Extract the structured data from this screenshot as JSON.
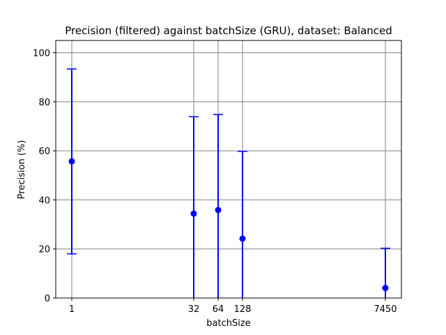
{
  "chart_data": {
    "type": "scatter",
    "title": "Precision (filtered) against batchSize (GRU), dataset: Balanced",
    "xlabel": "batchSize",
    "ylabel": "Precision (%)",
    "x_tick_labels": [
      "1",
      "32",
      "64",
      "128",
      "7450"
    ],
    "y_ticks": [
      0,
      20,
      40,
      60,
      80,
      100
    ],
    "y_tick_labels": [
      "0",
      "20",
      "40",
      "60",
      "80",
      "100"
    ],
    "ylim": [
      0,
      105
    ],
    "grid": true,
    "series": [
      {
        "marker_color": "#0000ff",
        "points": [
          {
            "x": "1",
            "y": 55.7,
            "err_low": 18.0,
            "err_high": 93.4
          },
          {
            "x": "32",
            "y": 34.4,
            "err_low": 0.0,
            "err_high": 73.9
          },
          {
            "x": "64",
            "y": 35.9,
            "err_low": 0.0,
            "err_high": 74.8
          },
          {
            "x": "128",
            "y": 24.2,
            "err_low": 0.0,
            "err_high": 59.8
          },
          {
            "x": "7450",
            "y": 4.1,
            "err_low": 0.0,
            "err_high": 20.3
          }
        ]
      }
    ]
  }
}
